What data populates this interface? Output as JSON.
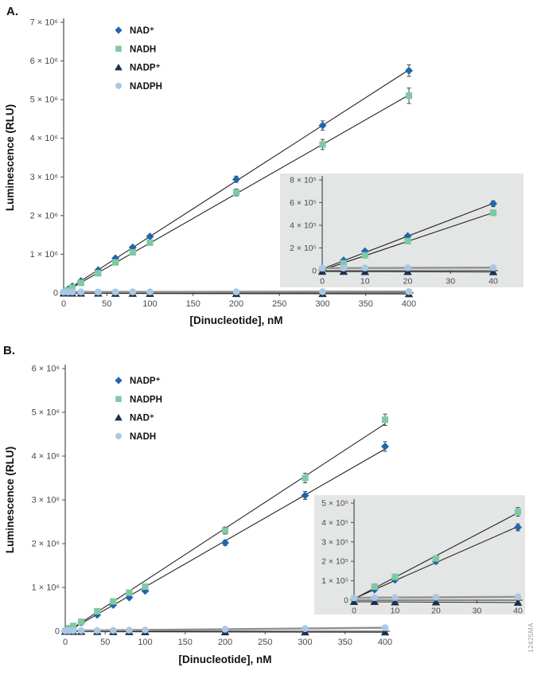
{
  "figure": {
    "watermark": "12425MA"
  },
  "panels": [
    {
      "label": "A.",
      "xlabel": "[Dinucleotide], nM",
      "ylabel": "Luminescence (RLU)"
    },
    {
      "label": "B.",
      "xlabel": "[Dinucleotide], nM",
      "ylabel": "Luminescence (RLU)"
    }
  ],
  "colors": {
    "axis": "#4d4d4d",
    "tick_text": "#4a4a4a",
    "error_bar": "#4a4a4a",
    "fit_line": "#222222",
    "flat_line": "#8f9294",
    "inset_bg": "#e4e5e5",
    "nad_blue": "#2166ac",
    "nadh_green": "#7ecaa2",
    "nadp_navy": "#1d3148",
    "nadph_lightblue": "#a9c8e6"
  },
  "chart_data": [
    {
      "id": "panel-a-main",
      "type": "scatter",
      "title": "",
      "xlabel": "[Dinucleotide], nM",
      "ylabel": "Luminescence (RLU)",
      "xlim": [
        0,
        400
      ],
      "ylim": [
        0,
        7000000
      ],
      "grid": false,
      "legend_position": "upper-left-inside",
      "xticks": [
        {
          "v": 0,
          "label": "0"
        },
        {
          "v": 50,
          "label": "50"
        },
        {
          "v": 100,
          "label": "100"
        },
        {
          "v": 150,
          "label": "150"
        },
        {
          "v": 200,
          "label": "200"
        },
        {
          "v": 250,
          "label": "250"
        },
        {
          "v": 300,
          "label": "300"
        },
        {
          "v": 350,
          "label": "350"
        },
        {
          "v": 400,
          "label": "400"
        }
      ],
      "yticks": [
        {
          "v": 0,
          "label": "0"
        },
        {
          "v": 1000000,
          "label": "1 × 10⁶"
        },
        {
          "v": 2000000,
          "label": "2 × 10⁶"
        },
        {
          "v": 3000000,
          "label": "3 × 10⁶"
        },
        {
          "v": 4000000,
          "label": "4 × 10⁶"
        },
        {
          "v": 5000000,
          "label": "5 × 10⁶"
        },
        {
          "v": 6000000,
          "label": "6 × 10⁶"
        },
        {
          "v": 7000000,
          "label": "7 × 10⁶"
        }
      ],
      "x": [
        0,
        5,
        10,
        20,
        40,
        60,
        80,
        100,
        200,
        300,
        400
      ],
      "series": [
        {
          "name": "NAD⁺",
          "marker": "diamond",
          "color": "#2166ac",
          "line": {
            "color": "#222222",
            "width": 1.1
          },
          "values": [
            5000,
            90000,
            170000,
            305000,
            590000,
            895000,
            1175000,
            1460000,
            2940000,
            4330000,
            5750000
          ],
          "err": [
            0,
            0,
            6000,
            10000,
            20000,
            25000,
            30000,
            40000,
            80000,
            120000,
            150000
          ]
        },
        {
          "name": "NADH",
          "marker": "square",
          "color": "#7ecaa2",
          "line": {
            "color": "#222222",
            "width": 1.1
          },
          "values": [
            4000,
            65000,
            135000,
            260000,
            510000,
            790000,
            1050000,
            1300000,
            2600000,
            3840000,
            5100000
          ],
          "err": [
            0,
            0,
            6000,
            10000,
            20000,
            25000,
            30000,
            40000,
            90000,
            130000,
            200000
          ]
        },
        {
          "name": "NADP⁺",
          "marker": "triangle",
          "color": "#1d3148",
          "line": {
            "color": "#222222",
            "width": 1
          },
          "values": [
            -8000,
            -8000,
            -10000,
            -10000,
            -12000,
            -15000,
            -15000,
            -18000,
            -20000,
            -22000,
            -25000
          ],
          "err": [
            0,
            0,
            0,
            0,
            0,
            0,
            0,
            0,
            0,
            0,
            0
          ]
        },
        {
          "name": "NADPH",
          "marker": "circle",
          "color": "#a9c8e6",
          "line": {
            "color": "#8f9294",
            "width": 2.6
          },
          "values": [
            22000,
            23000,
            24000,
            25000,
            26000,
            27000,
            28000,
            28000,
            30000,
            32000,
            34000
          ],
          "err": [
            0,
            0,
            0,
            0,
            0,
            0,
            0,
            0,
            0,
            0,
            0
          ]
        }
      ]
    },
    {
      "id": "panel-a-inset",
      "type": "scatter",
      "title": "",
      "xlabel": "",
      "ylabel": "",
      "xlim": [
        0,
        40
      ],
      "ylim": [
        0,
        800000
      ],
      "grid": false,
      "xticks": [
        {
          "v": 0,
          "label": "0"
        },
        {
          "v": 10,
          "label": "10"
        },
        {
          "v": 20,
          "label": "20"
        },
        {
          "v": 30,
          "label": "30"
        },
        {
          "v": 40,
          "label": "40"
        }
      ],
      "yticks": [
        {
          "v": 0,
          "label": "0"
        },
        {
          "v": 200000,
          "label": "2 × 10⁵"
        },
        {
          "v": 400000,
          "label": "4 × 10⁵"
        },
        {
          "v": 600000,
          "label": "6 × 10⁵"
        },
        {
          "v": 800000,
          "label": "8 × 10⁵"
        }
      ],
      "x": [
        0,
        5,
        10,
        20,
        40
      ],
      "series": [
        {
          "name": "NAD⁺",
          "marker": "diamond",
          "color": "#2166ac",
          "line": {
            "color": "#222222",
            "width": 1.1
          },
          "values": [
            5000,
            90000,
            170000,
            305000,
            590000
          ],
          "err": [
            3000,
            6000,
            9000,
            14000,
            25000
          ]
        },
        {
          "name": "NADH",
          "marker": "square",
          "color": "#7ecaa2",
          "line": {
            "color": "#222222",
            "width": 1.1
          },
          "values": [
            4000,
            65000,
            135000,
            260000,
            510000
          ],
          "err": [
            3000,
            6000,
            9000,
            14000,
            25000
          ]
        },
        {
          "name": "NADP⁺",
          "marker": "triangle",
          "color": "#1d3148",
          "line": {
            "color": "#222222",
            "width": 1
          },
          "values": [
            -8000,
            -8000,
            -10000,
            -10000,
            -12000
          ],
          "err": [
            0,
            0,
            0,
            0,
            0
          ]
        },
        {
          "name": "NADPH",
          "marker": "circle",
          "color": "#a9c8e6",
          "line": {
            "color": "#8f9294",
            "width": 2.4
          },
          "values": [
            22000,
            23000,
            24000,
            25000,
            26000
          ],
          "err": [
            0,
            0,
            0,
            0,
            0
          ]
        }
      ]
    },
    {
      "id": "panel-b-main",
      "type": "scatter",
      "title": "",
      "xlabel": "[Dinucleotide], nM",
      "ylabel": "Luminescence (RLU)",
      "xlim": [
        0,
        400
      ],
      "ylim": [
        0,
        6000000
      ],
      "grid": false,
      "legend_position": "upper-left-inside",
      "xticks": [
        {
          "v": 0,
          "label": "0"
        },
        {
          "v": 50,
          "label": "50"
        },
        {
          "v": 100,
          "label": "100"
        },
        {
          "v": 150,
          "label": "150"
        },
        {
          "v": 200,
          "label": "200"
        },
        {
          "v": 250,
          "label": "250"
        },
        {
          "v": 300,
          "label": "300"
        },
        {
          "v": 350,
          "label": "350"
        },
        {
          "v": 400,
          "label": "400"
        }
      ],
      "yticks": [
        {
          "v": 0,
          "label": "0"
        },
        {
          "v": 1000000,
          "label": "1 × 10⁶"
        },
        {
          "v": 2000000,
          "label": "2 × 10⁶"
        },
        {
          "v": 3000000,
          "label": "3 × 10⁶"
        },
        {
          "v": 4000000,
          "label": "4 × 10⁶"
        },
        {
          "v": 5000000,
          "label": "5 × 10⁶"
        },
        {
          "v": 6000000,
          "label": "6 × 10⁶"
        }
      ],
      "x": [
        0,
        5,
        10,
        20,
        40,
        60,
        80,
        100,
        200,
        300,
        400
      ],
      "series": [
        {
          "name": "NADP⁺",
          "marker": "diamond",
          "color": "#2166ac",
          "line": {
            "color": "#222222",
            "width": 1.1
          },
          "values": [
            2000,
            55000,
            105000,
            200000,
            375000,
            600000,
            770000,
            920000,
            2020000,
            3100000,
            4220000
          ],
          "err": [
            0,
            0,
            6000,
            10000,
            15000,
            20000,
            25000,
            35000,
            60000,
            90000,
            110000
          ]
        },
        {
          "name": "NADPH",
          "marker": "square",
          "color": "#7ecaa2",
          "line": {
            "color": "#222222",
            "width": 1.1
          },
          "values": [
            5000,
            70000,
            120000,
            215000,
            455000,
            680000,
            880000,
            1020000,
            2300000,
            3500000,
            4830000
          ],
          "err": [
            0,
            0,
            6000,
            10000,
            18000,
            22000,
            28000,
            40000,
            80000,
            110000,
            130000
          ]
        },
        {
          "name": "NAD⁺",
          "marker": "triangle",
          "color": "#1d3148",
          "line": {
            "color": "#222222",
            "width": 1
          },
          "values": [
            -8000,
            -8000,
            -10000,
            -10000,
            -12000,
            -14000,
            -15000,
            -16000,
            -18000,
            -20000,
            -22000
          ],
          "err": [
            0,
            0,
            0,
            0,
            0,
            0,
            0,
            0,
            0,
            0,
            0
          ]
        },
        {
          "name": "NADH",
          "marker": "circle",
          "color": "#a9c8e6",
          "line": {
            "color": "#8f9294",
            "width": 2.6
          },
          "values": [
            12000,
            13000,
            14000,
            15000,
            17000,
            20000,
            24000,
            28000,
            45000,
            60000,
            80000
          ],
          "err": [
            0,
            0,
            0,
            0,
            0,
            0,
            0,
            0,
            0,
            0,
            0
          ]
        }
      ]
    },
    {
      "id": "panel-b-inset",
      "type": "scatter",
      "title": "",
      "xlabel": "",
      "ylabel": "",
      "xlim": [
        0,
        40
      ],
      "ylim": [
        0,
        500000
      ],
      "grid": false,
      "xticks": [
        {
          "v": 0,
          "label": "0"
        },
        {
          "v": 10,
          "label": "10"
        },
        {
          "v": 20,
          "label": "20"
        },
        {
          "v": 30,
          "label": "30"
        },
        {
          "v": 40,
          "label": "40"
        }
      ],
      "yticks": [
        {
          "v": 0,
          "label": "0"
        },
        {
          "v": 100000,
          "label": "1 × 10⁵"
        },
        {
          "v": 200000,
          "label": "2 × 10⁵"
        },
        {
          "v": 300000,
          "label": "3 × 10⁵"
        },
        {
          "v": 400000,
          "label": "4 × 10⁵"
        },
        {
          "v": 500000,
          "label": "5 × 10⁵"
        }
      ],
      "x": [
        0,
        5,
        10,
        20,
        40
      ],
      "series": [
        {
          "name": "NADP⁺",
          "marker": "diamond",
          "color": "#2166ac",
          "line": {
            "color": "#222222",
            "width": 1.1
          },
          "values": [
            2000,
            55000,
            105000,
            200000,
            375000
          ],
          "err": [
            2000,
            5000,
            8000,
            12000,
            18000
          ]
        },
        {
          "name": "NADPH",
          "marker": "square",
          "color": "#7ecaa2",
          "line": {
            "color": "#222222",
            "width": 1.1
          },
          "values": [
            5000,
            70000,
            120000,
            215000,
            455000
          ],
          "err": [
            3000,
            6000,
            9000,
            14000,
            22000
          ]
        },
        {
          "name": "NAD⁺",
          "marker": "triangle",
          "color": "#1d3148",
          "line": {
            "color": "#222222",
            "width": 1
          },
          "values": [
            -8000,
            -8000,
            -10000,
            -10000,
            -12000
          ],
          "err": [
            0,
            0,
            0,
            0,
            0
          ]
        },
        {
          "name": "NADH",
          "marker": "circle",
          "color": "#a9c8e6",
          "line": {
            "color": "#8f9294",
            "width": 2.4
          },
          "values": [
            12000,
            13000,
            14000,
            15000,
            17000
          ],
          "err": [
            0,
            0,
            0,
            0,
            0
          ]
        }
      ]
    }
  ]
}
